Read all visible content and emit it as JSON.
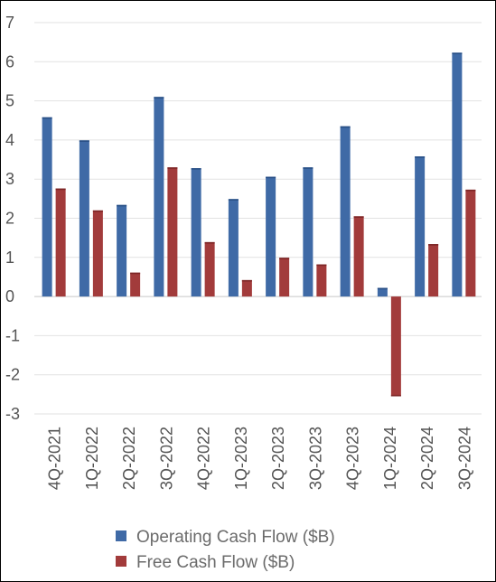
{
  "chart_data": {
    "type": "bar",
    "categories": [
      "4Q-2021",
      "1Q-2022",
      "2Q-2022",
      "3Q-2022",
      "4Q-2022",
      "1Q-2023",
      "2Q-2023",
      "3Q-2023",
      "4Q-2023",
      "1Q-2024",
      "2Q-2024",
      "3Q-2024"
    ],
    "series": [
      {
        "name": "Operating Cash Flow ($B)",
        "color": "#3f6aa6",
        "values": [
          4.58,
          3.99,
          2.34,
          5.1,
          3.28,
          2.49,
          3.06,
          3.3,
          4.35,
          0.22,
          3.58,
          6.23
        ]
      },
      {
        "name": "Free Cash Flow ($B)",
        "color": "#a23b3b",
        "values": [
          2.76,
          2.2,
          0.61,
          3.3,
          1.39,
          0.42,
          0.99,
          0.82,
          2.05,
          -2.55,
          1.34,
          2.73
        ]
      }
    ],
    "yticks": [
      7,
      6,
      5,
      4,
      3,
      2,
      1,
      0,
      -1,
      -2,
      -3
    ],
    "ylim": [
      -3,
      7
    ],
    "grid": true,
    "legend_position": "bottom"
  }
}
